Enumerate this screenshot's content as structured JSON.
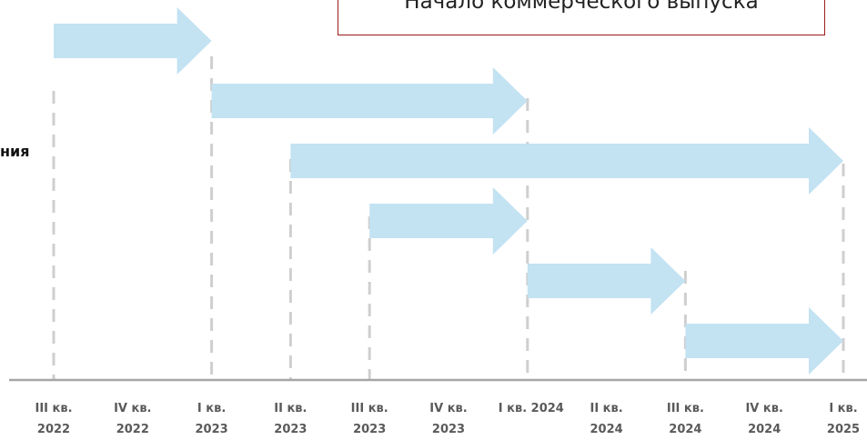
{
  "callout": {
    "text": "Начало коммерческого выпуска"
  },
  "side_label": "ния",
  "quarters": [
    {
      "line1": "III кв.",
      "line2": "2022"
    },
    {
      "line1": "IV кв.",
      "line2": "2022"
    },
    {
      "line1": "I кв.",
      "line2": "2023"
    },
    {
      "line1": "II кв.",
      "line2": "2023"
    },
    {
      "line1": "III кв.",
      "line2": "2023"
    },
    {
      "line1": "IV кв.",
      "line2": "2023"
    },
    {
      "line1": "I кв. 2024",
      "line2": ""
    },
    {
      "line1": "II кв.",
      "line2": "2024"
    },
    {
      "line1": "III кв.",
      "line2": "2024"
    },
    {
      "line1": "IV кв.",
      "line2": "2024"
    },
    {
      "line1": "I кв.",
      "line2": "2025"
    }
  ],
  "phases": [
    {
      "start": "III кв. 2022",
      "end": "I кв. 2023"
    },
    {
      "start": "I кв. 2023",
      "end": "I кв. 2024"
    },
    {
      "start": "II кв. 2023",
      "end": "I кв. 2025"
    },
    {
      "start": "III кв. 2023",
      "end": "I кв. 2024"
    },
    {
      "start": "I кв. 2024",
      "end": "III кв. 2024"
    },
    {
      "start": "III кв. 2024",
      "end": "I кв. 2025"
    }
  ],
  "colors": {
    "arrow": "#c3e2f2",
    "dashed_line": "#cfcfcf",
    "baseline": "#a6a6a6",
    "callout_border": "#9b1c1c",
    "label": "#5a5a5a"
  }
}
